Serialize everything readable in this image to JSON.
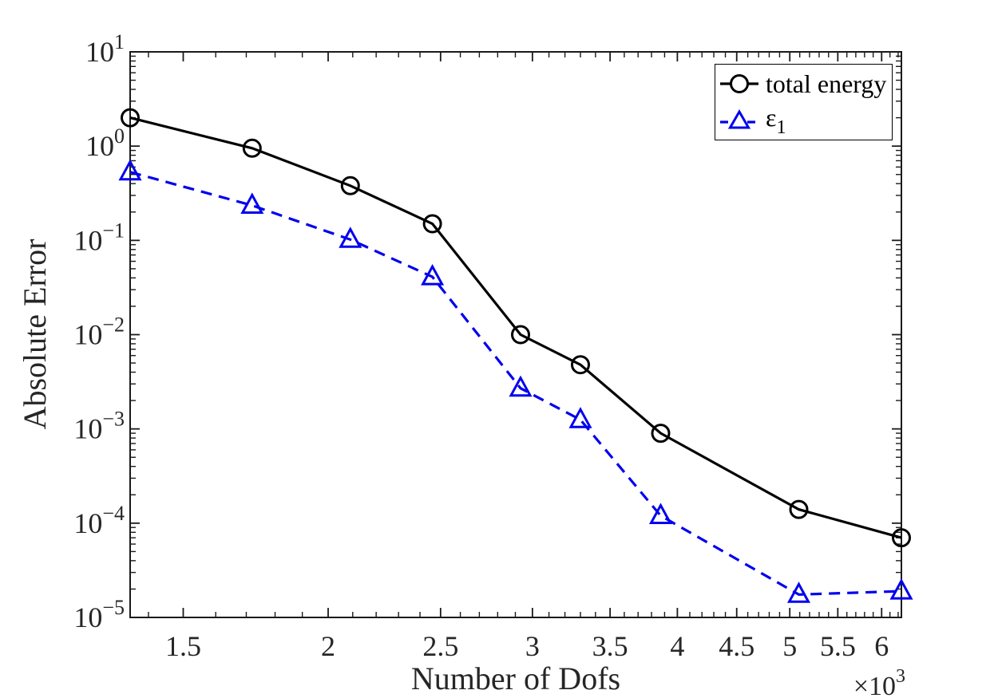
{
  "figure": {
    "background": "#ffffff"
  },
  "colors": {
    "axis": "#1a1a1a",
    "tick_label": "#262626",
    "black_series": "#000000",
    "blue_series": "#0000EE",
    "legend_border": "#000000"
  },
  "chart_data": {
    "type": "line",
    "title": "",
    "xlabel": "Number of Dofs",
    "ylabel": "Absolute Error",
    "x_scale": "log",
    "y_scale": "log",
    "grid": false,
    "legend_position": "top-right",
    "xlim": [
      1350,
      6240
    ],
    "ylim": [
      1e-05,
      10
    ],
    "x_unit_multiplier": {
      "base": "×10",
      "exponent": "3"
    },
    "x_ticks": [
      {
        "value": 1500,
        "label": "1.5"
      },
      {
        "value": 2000,
        "label": "2"
      },
      {
        "value": 2500,
        "label": "2.5"
      },
      {
        "value": 3000,
        "label": "3"
      },
      {
        "value": 3500,
        "label": "3.5"
      },
      {
        "value": 4000,
        "label": "4"
      },
      {
        "value": 4500,
        "label": "4.5"
      },
      {
        "value": 5000,
        "label": "5"
      },
      {
        "value": 5500,
        "label": "5.5"
      },
      {
        "value": 6000,
        "label": "6"
      }
    ],
    "y_tick_exponents": [
      1,
      0,
      -1,
      -2,
      -3,
      -4,
      -5
    ],
    "series": [
      {
        "name": "total energy",
        "color": "#000000",
        "line_style": "solid",
        "marker": "circle",
        "x": [
          1350,
          1720,
          2090,
          2460,
          2930,
          3300,
          3870,
          5090,
          6240
        ],
        "y": [
          2.0,
          0.95,
          0.38,
          0.15,
          0.01,
          0.0048,
          0.0009,
          0.00014,
          7e-05
        ]
      },
      {
        "name": "eps1",
        "color": "#0000EE",
        "line_style": "dashed",
        "marker": "triangle",
        "x": [
          1350,
          1720,
          2090,
          2460,
          2930,
          3300,
          3870,
          5090,
          6240
        ],
        "y": [
          0.53,
          0.235,
          0.102,
          0.041,
          0.0027,
          0.00125,
          0.00012,
          1.75e-05,
          1.9e-05
        ]
      }
    ]
  },
  "legend": {
    "items": [
      {
        "label": "total energy",
        "subscript": ""
      },
      {
        "label": "ε",
        "subscript": "1"
      }
    ]
  }
}
